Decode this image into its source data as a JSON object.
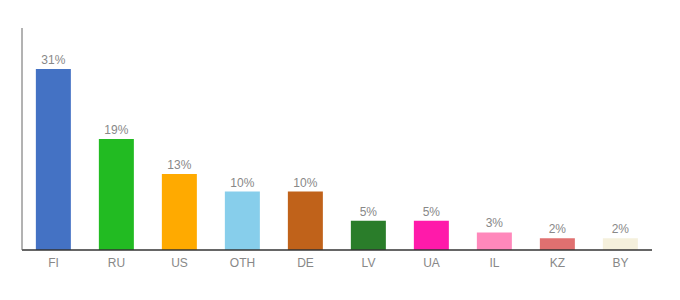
{
  "chart_data": {
    "type": "bar",
    "categories": [
      "FI",
      "RU",
      "US",
      "OTH",
      "DE",
      "LV",
      "UA",
      "IL",
      "KZ",
      "BY"
    ],
    "values": [
      31,
      19,
      13,
      10,
      10,
      5,
      5,
      3,
      2,
      2
    ],
    "value_labels": [
      "31%",
      "19%",
      "13%",
      "10%",
      "10%",
      "5%",
      "5%",
      "3%",
      "2%",
      "2%"
    ],
    "colors": [
      "#4472c4",
      "#22bb22",
      "#ffaa00",
      "#87ceeb",
      "#c0621a",
      "#2a7d2a",
      "#ff1aaa",
      "#ff88bb",
      "#e07070",
      "#f5f0dc"
    ],
    "ylim": [
      0,
      38
    ],
    "grid": false,
    "data_labels": true,
    "tick_labels": "x"
  }
}
